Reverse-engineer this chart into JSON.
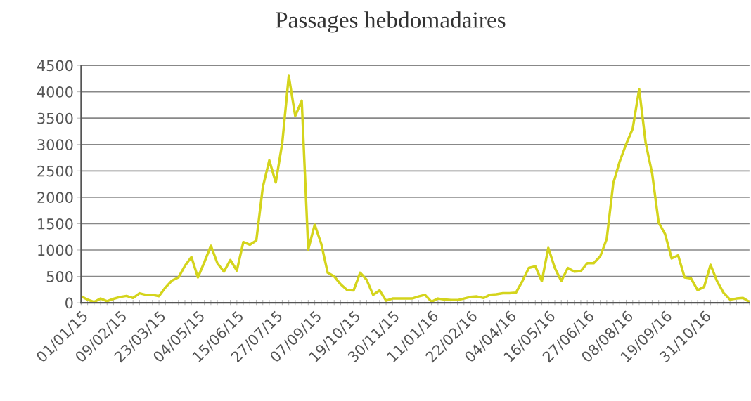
{
  "chart_data": {
    "type": "line",
    "title": "Passages hebdomadaires",
    "categories": [
      "01/01/15",
      null,
      null,
      null,
      null,
      null,
      "09/02/15",
      null,
      null,
      null,
      null,
      null,
      "23/03/15",
      null,
      null,
      null,
      null,
      null,
      "04/05/15",
      null,
      null,
      null,
      null,
      null,
      "15/06/15",
      null,
      null,
      null,
      null,
      null,
      "27/07/15",
      null,
      null,
      null,
      null,
      null,
      "07/09/15",
      null,
      null,
      null,
      null,
      null,
      "19/10/15",
      null,
      null,
      null,
      null,
      null,
      "30/11/15",
      null,
      null,
      null,
      null,
      null,
      "11/01/16",
      null,
      null,
      null,
      null,
      null,
      "22/02/16",
      null,
      null,
      null,
      null,
      null,
      "04/04/16",
      null,
      null,
      null,
      null,
      null,
      "16/05/16",
      null,
      null,
      null,
      null,
      null,
      "27/06/16",
      null,
      null,
      null,
      null,
      null,
      "08/08/16",
      null,
      null,
      null,
      null,
      null,
      "19/09/16",
      null,
      null,
      null,
      null,
      null,
      "31/10/16",
      null,
      null,
      null,
      null,
      null,
      null,
      null
    ],
    "series": [
      {
        "color": "#d4d41c",
        "values": [
          124,
          58,
          15,
          80,
          30,
          75,
          110,
          130,
          90,
          180,
          150,
          150,
          125,
          290,
          420,
          480,
          700,
          866,
          480,
          770,
          1080,
          750,
          590,
          810,
          610,
          1150,
          1100,
          1180,
          2190,
          2700,
          2280,
          3030,
          4300,
          3540,
          3830,
          1010,
          1480,
          1120,
          570,
          500,
          350,
          240,
          235,
          570,
          435,
          150,
          235,
          40,
          80,
          80,
          80,
          80,
          120,
          150,
          20,
          80,
          60,
          50,
          50,
          80,
          110,
          120,
          90,
          150,
          160,
          180,
          180,
          190,
          410,
          660,
          690,
          410,
          1040,
          660,
          410,
          660,
          590,
          600,
          750,
          750,
          880,
          1210,
          2260,
          2680,
          3010,
          3300,
          4050,
          3030,
          2450,
          1520,
          1300,
          840,
          900,
          480,
          460,
          240,
          300,
          720,
          410,
          190,
          60,
          80,
          90,
          15
        ]
      }
    ],
    "ylim": [
      0,
      4500
    ],
    "yticks": [
      0,
      500,
      1000,
      1500,
      2000,
      2500,
      3000,
      3500,
      4000,
      4500
    ],
    "grid": "y",
    "marker": "none",
    "line_style": "solid"
  }
}
